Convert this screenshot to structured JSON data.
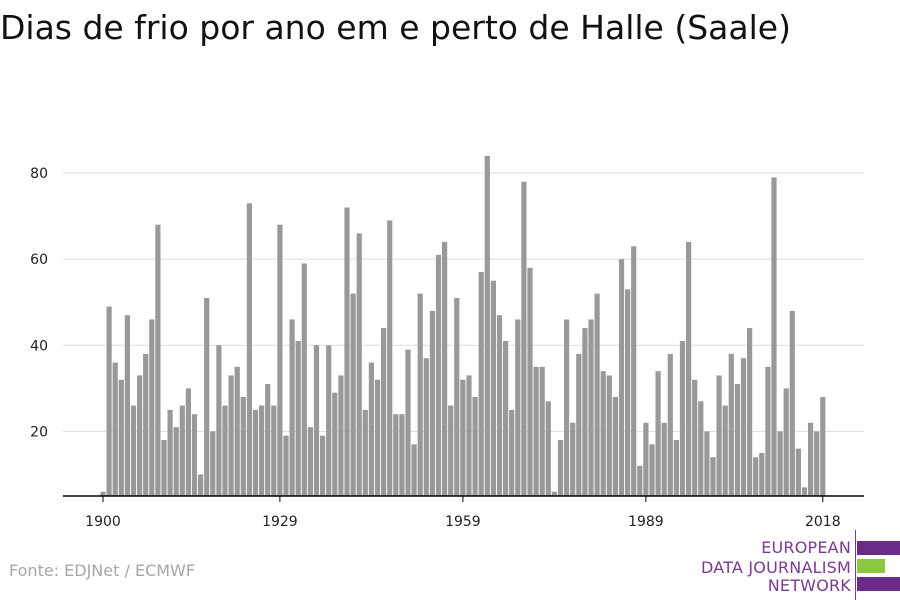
{
  "title": "Dias de frio por ano em e perto de Halle (Saale)",
  "source": "Fonte: EDJNet / ECMWF",
  "logo": {
    "lines": [
      "EUROPEAN",
      "DATA JOURNALISM",
      "NETWORK"
    ],
    "colors": {
      "purple": "#6a2c86",
      "green": "#8dc63f"
    }
  },
  "colors": {
    "bar": "#999999",
    "grid": "#dddddd",
    "axis": "#000000"
  },
  "chart_data": {
    "type": "bar",
    "title": "Dias de frio por ano em e perto de Halle (Saale)",
    "x_ticks": [
      1900,
      1929,
      1959,
      1989,
      2018
    ],
    "y_ticks": [
      20,
      40,
      60,
      80
    ],
    "ylim": [
      5,
      90
    ],
    "grid": true,
    "x": [
      1900,
      1901,
      1902,
      1903,
      1904,
      1905,
      1906,
      1907,
      1908,
      1909,
      1910,
      1911,
      1912,
      1913,
      1914,
      1915,
      1916,
      1917,
      1918,
      1919,
      1920,
      1921,
      1922,
      1923,
      1924,
      1925,
      1926,
      1927,
      1928,
      1929,
      1930,
      1931,
      1932,
      1933,
      1934,
      1935,
      1936,
      1937,
      1938,
      1939,
      1940,
      1941,
      1942,
      1943,
      1944,
      1945,
      1946,
      1947,
      1948,
      1949,
      1950,
      1951,
      1952,
      1953,
      1954,
      1955,
      1956,
      1957,
      1958,
      1959,
      1960,
      1961,
      1962,
      1963,
      1964,
      1965,
      1966,
      1967,
      1968,
      1969,
      1970,
      1971,
      1972,
      1973,
      1974,
      1975,
      1976,
      1977,
      1978,
      1979,
      1980,
      1981,
      1982,
      1983,
      1984,
      1985,
      1986,
      1987,
      1988,
      1989,
      1990,
      1991,
      1992,
      1993,
      1994,
      1995,
      1996,
      1997,
      1998,
      1999,
      2000,
      2001,
      2002,
      2003,
      2004,
      2005,
      2006,
      2007,
      2008,
      2009,
      2010,
      2011,
      2012,
      2013,
      2014,
      2015,
      2016,
      2017,
      2018
    ],
    "values": [
      6,
      49,
      36,
      32,
      47,
      26,
      33,
      38,
      46,
      68,
      18,
      25,
      21,
      26,
      30,
      24,
      10,
      51,
      20,
      40,
      26,
      33,
      35,
      28,
      73,
      25,
      26,
      31,
      26,
      68,
      19,
      46,
      41,
      59,
      21,
      40,
      19,
      40,
      29,
      33,
      72,
      52,
      66,
      25,
      36,
      32,
      44,
      69,
      24,
      24,
      39,
      17,
      52,
      37,
      48,
      61,
      64,
      26,
      51,
      32,
      33,
      28,
      57,
      84,
      55,
      47,
      41,
      25,
      46,
      78,
      58,
      35,
      35,
      27,
      6,
      18,
      46,
      22,
      38,
      44,
      46,
      52,
      34,
      33,
      28,
      60,
      53,
      63,
      12,
      22,
      17,
      34,
      22,
      38,
      18,
      41,
      64,
      32,
      27,
      20,
      14,
      33,
      26,
      38,
      31,
      37,
      44,
      14,
      15,
      35,
      79,
      20,
      30,
      48,
      16,
      7,
      22,
      20,
      28
    ]
  }
}
